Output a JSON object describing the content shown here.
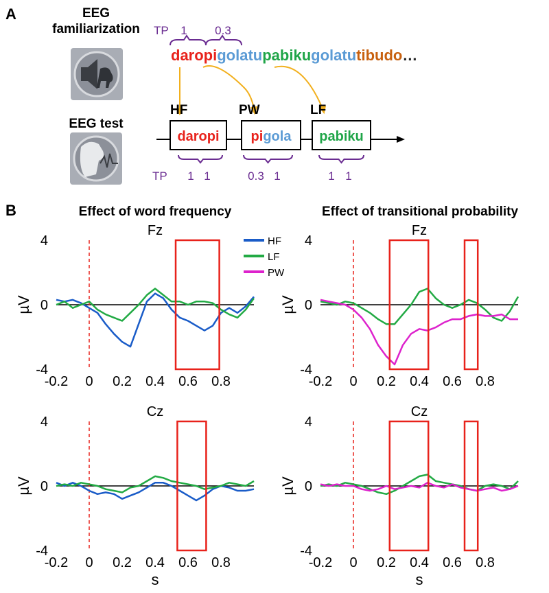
{
  "panel_a": {
    "label": "A",
    "familiarization": "EEG familiarization",
    "test": "EEG test",
    "stream_tp": {
      "label": "TP",
      "values": [
        "1",
        "0.3"
      ]
    },
    "stream": [
      {
        "text": "daropi",
        "color": "#e8221b"
      },
      {
        "text": "golatu",
        "color": "#5b9bd5"
      },
      {
        "text": "pabiku",
        "color": "#1fa548"
      },
      {
        "text": "golatu",
        "color": "#5b9bd5"
      },
      {
        "text": "tibudo",
        "color": "#c8610f"
      },
      {
        "text": "…",
        "color": "#222222"
      }
    ],
    "test_tp_label": "TP",
    "test_items": [
      {
        "label": "HF",
        "parts": [
          {
            "text": "daropi",
            "color": "#e8221b"
          }
        ],
        "tp": [
          "1",
          "1"
        ]
      },
      {
        "label": "PW",
        "parts": [
          {
            "text": "pi",
            "color": "#e8221b"
          },
          {
            "text": "gola",
            "color": "#5b9bd5"
          }
        ],
        "tp": [
          "0.3",
          "1"
        ]
      },
      {
        "label": "LF",
        "parts": [
          {
            "text": "pabiku",
            "color": "#1fa548"
          }
        ],
        "tp": [
          "1",
          "1"
        ]
      }
    ]
  },
  "panel_b": {
    "label": "B",
    "columns": [
      "Effect of word frequency",
      "Effect of transitional probability"
    ]
  },
  "chart_data": [
    {
      "type": "line",
      "title": "Fz",
      "ylabel": "µV",
      "x": [
        -0.2,
        -0.15,
        -0.1,
        -0.05,
        0,
        0.05,
        0.1,
        0.15,
        0.2,
        0.25,
        0.3,
        0.35,
        0.4,
        0.45,
        0.5,
        0.55,
        0.6,
        0.65,
        0.7,
        0.75,
        0.8,
        0.85,
        0.9,
        0.95,
        1.0
      ],
      "series": [
        {
          "name": "HF",
          "color": "#1a5cc8",
          "values": [
            0.3,
            0.2,
            0.3,
            0.1,
            -0.2,
            -0.5,
            -1.2,
            -1.8,
            -2.3,
            -2.6,
            -1.2,
            0.2,
            0.7,
            0.4,
            -0.3,
            -0.8,
            -1.0,
            -1.3,
            -1.6,
            -1.3,
            -0.5,
            -0.2,
            -0.5,
            -0.1,
            0.5
          ]
        },
        {
          "name": "LF",
          "color": "#22aa44",
          "values": [
            0,
            0.2,
            -0.2,
            0,
            0.2,
            -0.3,
            -0.6,
            -0.8,
            -1.0,
            -0.5,
            0,
            0.6,
            1.0,
            0.6,
            0.2,
            0.2,
            0,
            0.2,
            0.2,
            0.1,
            -0.3,
            -0.6,
            -0.8,
            -0.3,
            0.4
          ]
        }
      ],
      "xlim": [
        -0.2,
        1.0
      ],
      "xticks": [
        -0.2,
        0,
        0.2,
        0.4,
        0.6,
        0.8
      ],
      "ylim": [
        -4,
        4
      ],
      "yticks": [
        -4,
        0,
        4
      ],
      "onset": 0,
      "baseline": 0,
      "windows": [
        [
          0.525,
          0.79
        ]
      ]
    },
    {
      "type": "line",
      "title": "Fz",
      "ylabel": "µV",
      "x": [
        -0.2,
        -0.15,
        -0.1,
        -0.05,
        0,
        0.05,
        0.1,
        0.15,
        0.2,
        0.25,
        0.3,
        0.35,
        0.4,
        0.45,
        0.5,
        0.55,
        0.6,
        0.65,
        0.7,
        0.75,
        0.8,
        0.85,
        0.9,
        0.95,
        1.0
      ],
      "series": [
        {
          "name": "LF",
          "color": "#22aa44",
          "values": [
            0.2,
            0.1,
            0,
            0.2,
            0.1,
            -0.2,
            -0.5,
            -0.9,
            -1.2,
            -1.2,
            -0.6,
            0,
            0.8,
            1.0,
            0.4,
            0,
            -0.2,
            0,
            0.3,
            0.1,
            -0.3,
            -0.8,
            -1.0,
            -0.4,
            0.5
          ]
        },
        {
          "name": "PW",
          "color": "#dd22cc",
          "values": [
            0.3,
            0.2,
            0.1,
            0,
            -0.3,
            -0.8,
            -1.5,
            -2.5,
            -3.2,
            -3.7,
            -2.5,
            -1.8,
            -1.5,
            -1.6,
            -1.4,
            -1.1,
            -0.9,
            -0.9,
            -0.7,
            -0.6,
            -0.7,
            -0.7,
            -0.6,
            -0.9,
            -0.9
          ]
        }
      ],
      "xlim": [
        -0.2,
        1.0
      ],
      "xticks": [
        -0.2,
        0,
        0.2,
        0.4,
        0.6,
        0.8
      ],
      "ylim": [
        -4,
        4
      ],
      "yticks": [
        -4,
        0,
        4
      ],
      "onset": 0,
      "baseline": 0,
      "windows": [
        [
          0.22,
          0.455
        ],
        [
          0.675,
          0.755
        ]
      ]
    },
    {
      "type": "line",
      "title": "Cz",
      "ylabel": "µV",
      "xlabel": "s",
      "x": [
        -0.2,
        -0.15,
        -0.1,
        -0.05,
        0,
        0.05,
        0.1,
        0.15,
        0.2,
        0.25,
        0.3,
        0.35,
        0.4,
        0.45,
        0.5,
        0.55,
        0.6,
        0.65,
        0.7,
        0.75,
        0.8,
        0.85,
        0.9,
        0.95,
        1.0
      ],
      "series": [
        {
          "name": "HF",
          "color": "#1a5cc8",
          "values": [
            0.2,
            0,
            0.2,
            0,
            -0.3,
            -0.5,
            -0.4,
            -0.5,
            -0.8,
            -0.6,
            -0.4,
            -0.1,
            0.2,
            0.2,
            0,
            -0.3,
            -0.6,
            -0.9,
            -0.6,
            -0.2,
            0,
            -0.1,
            -0.3,
            -0.3,
            -0.2
          ]
        },
        {
          "name": "LF",
          "color": "#22aa44",
          "values": [
            0,
            0.1,
            0,
            0.2,
            0.1,
            0,
            -0.2,
            -0.3,
            -0.4,
            -0.1,
            0,
            0.3,
            0.6,
            0.5,
            0.3,
            0.2,
            0.1,
            0,
            -0.2,
            -0.1,
            0,
            0.2,
            0.1,
            0,
            0.3
          ]
        }
      ],
      "xlim": [
        -0.2,
        1.0
      ],
      "xticks": [
        -0.2,
        0,
        0.2,
        0.4,
        0.6,
        0.8
      ],
      "ylim": [
        -4,
        4
      ],
      "yticks": [
        -4,
        0,
        4
      ],
      "onset": 0,
      "baseline": 0,
      "windows": [
        [
          0.535,
          0.71
        ]
      ]
    },
    {
      "type": "line",
      "title": "Cz",
      "ylabel": "µV",
      "xlabel": "s",
      "x": [
        -0.2,
        -0.15,
        -0.1,
        -0.05,
        0,
        0.05,
        0.1,
        0.15,
        0.2,
        0.25,
        0.3,
        0.35,
        0.4,
        0.45,
        0.5,
        0.55,
        0.6,
        0.65,
        0.7,
        0.75,
        0.8,
        0.85,
        0.9,
        0.95,
        1.0
      ],
      "series": [
        {
          "name": "LF",
          "color": "#22aa44",
          "values": [
            0,
            0.1,
            0,
            0.2,
            0.1,
            0,
            -0.2,
            -0.4,
            -0.5,
            -0.3,
            0,
            0.3,
            0.6,
            0.7,
            0.3,
            0.2,
            0.1,
            0,
            -0.2,
            -0.3,
            0,
            0.1,
            0,
            -0.2,
            0.3
          ]
        },
        {
          "name": "PW",
          "color": "#dd22cc",
          "values": [
            0.1,
            0,
            0.1,
            0,
            0,
            -0.2,
            -0.3,
            -0.2,
            0,
            -0.2,
            -0.1,
            0,
            -0.1,
            0.2,
            0,
            -0.1,
            0.1,
            -0.1,
            -0.2,
            -0.3,
            -0.2,
            -0.1,
            -0.3,
            -0.2,
            0
          ]
        }
      ],
      "xlim": [
        -0.2,
        1.0
      ],
      "xticks": [
        -0.2,
        0,
        0.2,
        0.4,
        0.6,
        0.8
      ],
      "ylim": [
        -4,
        4
      ],
      "yticks": [
        -4,
        0,
        4
      ],
      "onset": 0,
      "baseline": 0,
      "windows": [
        [
          0.22,
          0.455
        ],
        [
          0.675,
          0.755
        ]
      ]
    }
  ]
}
